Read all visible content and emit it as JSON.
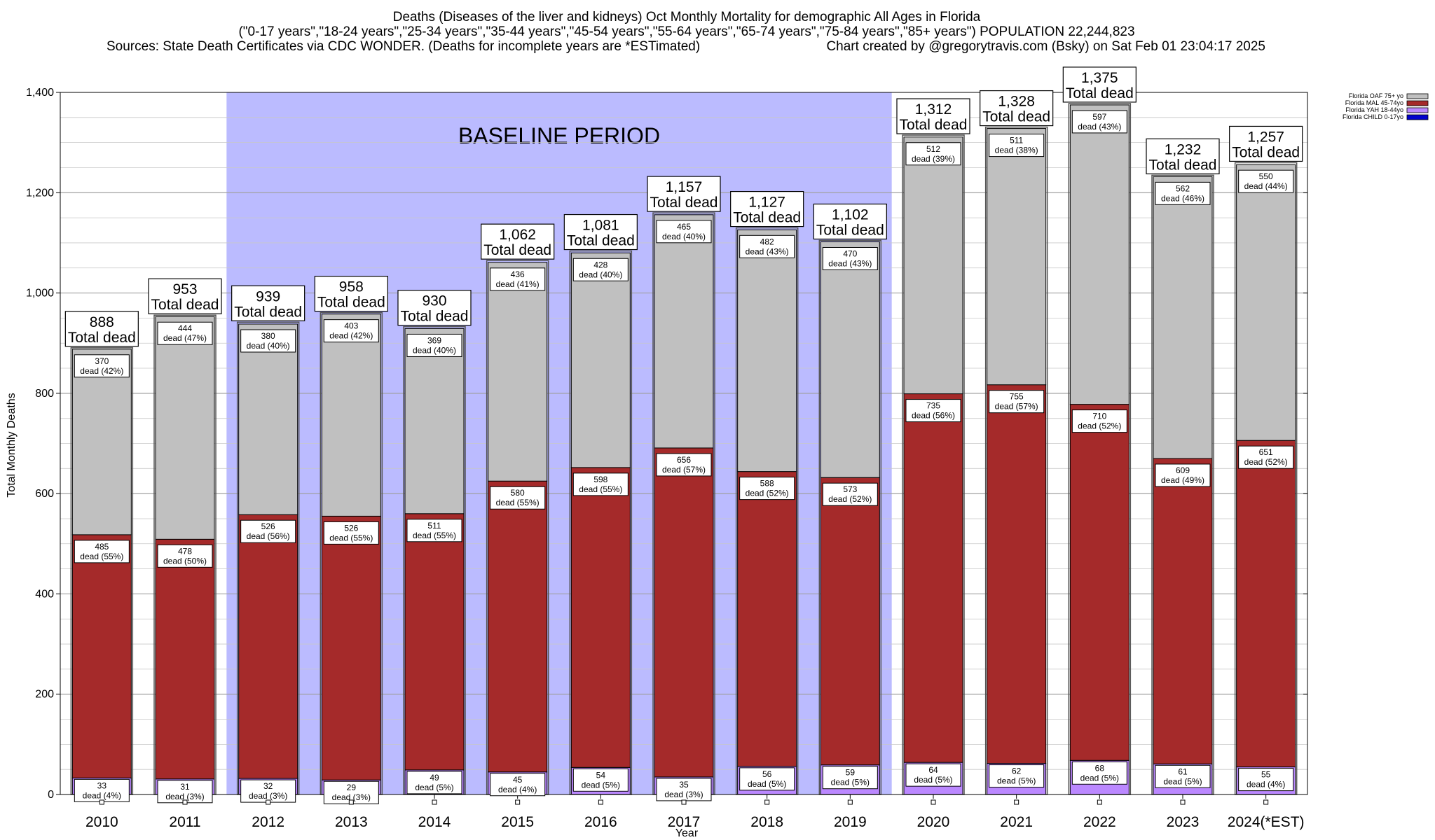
{
  "title_lines": [
    "Deaths (Diseases of the liver and kidneys) Oct Monthly Mortality for demographic All Ages in Florida",
    "(\"0-17 years\",\"18-24 years\",\"25-34 years\",\"35-44 years\",\"45-54 years\",\"55-64 years\",\"65-74 years\",\"75-84 years\",\"85+ years\") POPULATION 22,244,823",
    "Sources: State Death Certificates via CDC WONDER. (Deaths for incomplete years are *ESTimated)",
    "Chart created by @gregorytravis.com (Bsky) on Sat Feb 01 23:04:17 2025"
  ],
  "chart_data": {
    "type": "bar",
    "stacked": true,
    "xlabel": "Year",
    "ylabel": "Total Monthly Deaths",
    "ylim": [
      0,
      1400
    ],
    "y_ticks": [
      0,
      200,
      400,
      600,
      800,
      1000,
      1200,
      1400
    ],
    "y_tick_labels": [
      "0",
      "200",
      "400",
      "600",
      "800",
      "1,000",
      "1,200",
      "1,400"
    ],
    "grid": true,
    "legend_position": "top-right",
    "categories": [
      "2010",
      "2011",
      "2012",
      "2013",
      "2014",
      "2015",
      "2016",
      "2017",
      "2018",
      "2019",
      "2020",
      "2021",
      "2022",
      "2023",
      "2024(*EST)"
    ],
    "baseline_period": {
      "label": "BASELINE PERIOD",
      "start": "2012",
      "end": "2019",
      "color": "#bbbbff"
    },
    "series": [
      {
        "name": "Florida CHILD 0-17yo",
        "color": "#0000cc",
        "values": [
          0,
          0,
          0,
          0,
          0,
          0,
          0,
          0,
          0,
          0,
          0,
          0,
          0,
          0,
          0
        ],
        "labels": [
          "",
          "",
          "",
          "",
          "",
          "",
          "",
          "",
          "",
          "",
          "",
          "",
          "",
          "",
          ""
        ]
      },
      {
        "name": "Florida YAH 18-44yo",
        "color": "#bb88ff",
        "values": [
          33,
          31,
          32,
          29,
          49,
          45,
          54,
          35,
          56,
          59,
          64,
          62,
          68,
          61,
          55
        ],
        "labels": [
          "dead (4%)",
          "dead (3%)",
          "dead (3%)",
          "dead (3%)",
          "dead (5%)",
          "dead (4%)",
          "dead (5%)",
          "dead (3%)",
          "dead (5%)",
          "dead (5%)",
          "dead (5%)",
          "dead (5%)",
          "dead (5%)",
          "dead (5%)",
          "dead (4%)"
        ]
      },
      {
        "name": "Florida MAL 45-74yo",
        "color": "#a52a2a",
        "values": [
          485,
          478,
          526,
          526,
          511,
          580,
          598,
          656,
          588,
          573,
          735,
          755,
          710,
          609,
          651
        ],
        "labels": [
          "dead (55%)",
          "dead (50%)",
          "dead (56%)",
          "dead (55%)",
          "dead (55%)",
          "dead (55%)",
          "dead (55%)",
          "dead (57%)",
          "dead (52%)",
          "dead (52%)",
          "dead (56%)",
          "dead (57%)",
          "dead (52%)",
          "dead (49%)",
          "dead (52%)"
        ]
      },
      {
        "name": "Florida OAF 75+ yo",
        "color": "#c0c0c0",
        "values": [
          370,
          444,
          380,
          403,
          369,
          436,
          428,
          465,
          482,
          470,
          512,
          511,
          597,
          562,
          550
        ],
        "labels": [
          "dead (42%)",
          "dead (47%)",
          "dead (40%)",
          "dead (42%)",
          "dead (40%)",
          "dead (41%)",
          "dead (40%)",
          "dead (40%)",
          "dead (43%)",
          "dead (43%)",
          "dead (39%)",
          "dead (38%)",
          "dead (43%)",
          "dead (46%)",
          "dead (44%)"
        ]
      }
    ],
    "segment_value_labels": [
      [
        "",
        "",
        "",
        "",
        "",
        "",
        "",
        "",
        "",
        "",
        "",
        "",
        "",
        "",
        ""
      ],
      [
        "33",
        "31",
        "32",
        "29",
        "49",
        "45",
        "54",
        "35",
        "56",
        "59",
        "64",
        "62",
        "68",
        "61",
        "55"
      ],
      [
        "485",
        "478",
        "526",
        "526",
        "511",
        "580",
        "598",
        "656",
        "588",
        "573",
        "735",
        "755",
        "710",
        "609",
        "651"
      ],
      [
        "370",
        "444",
        "380",
        "403",
        "369",
        "436",
        "428",
        "465",
        "482",
        "470",
        "512",
        "511",
        "597",
        "562",
        "550"
      ]
    ],
    "totals": [
      888,
      953,
      939,
      958,
      930,
      1062,
      1081,
      1157,
      1127,
      1102,
      1312,
      1328,
      1375,
      1232,
      1257
    ],
    "total_value_labels": [
      "888",
      "953",
      "939",
      "958",
      "930",
      "1,062",
      "1,081",
      "1,157",
      "1,127",
      "1,102",
      "1,312",
      "1,328",
      "1,375",
      "1,232",
      "1,257"
    ],
    "total_caption": "Total dead"
  }
}
